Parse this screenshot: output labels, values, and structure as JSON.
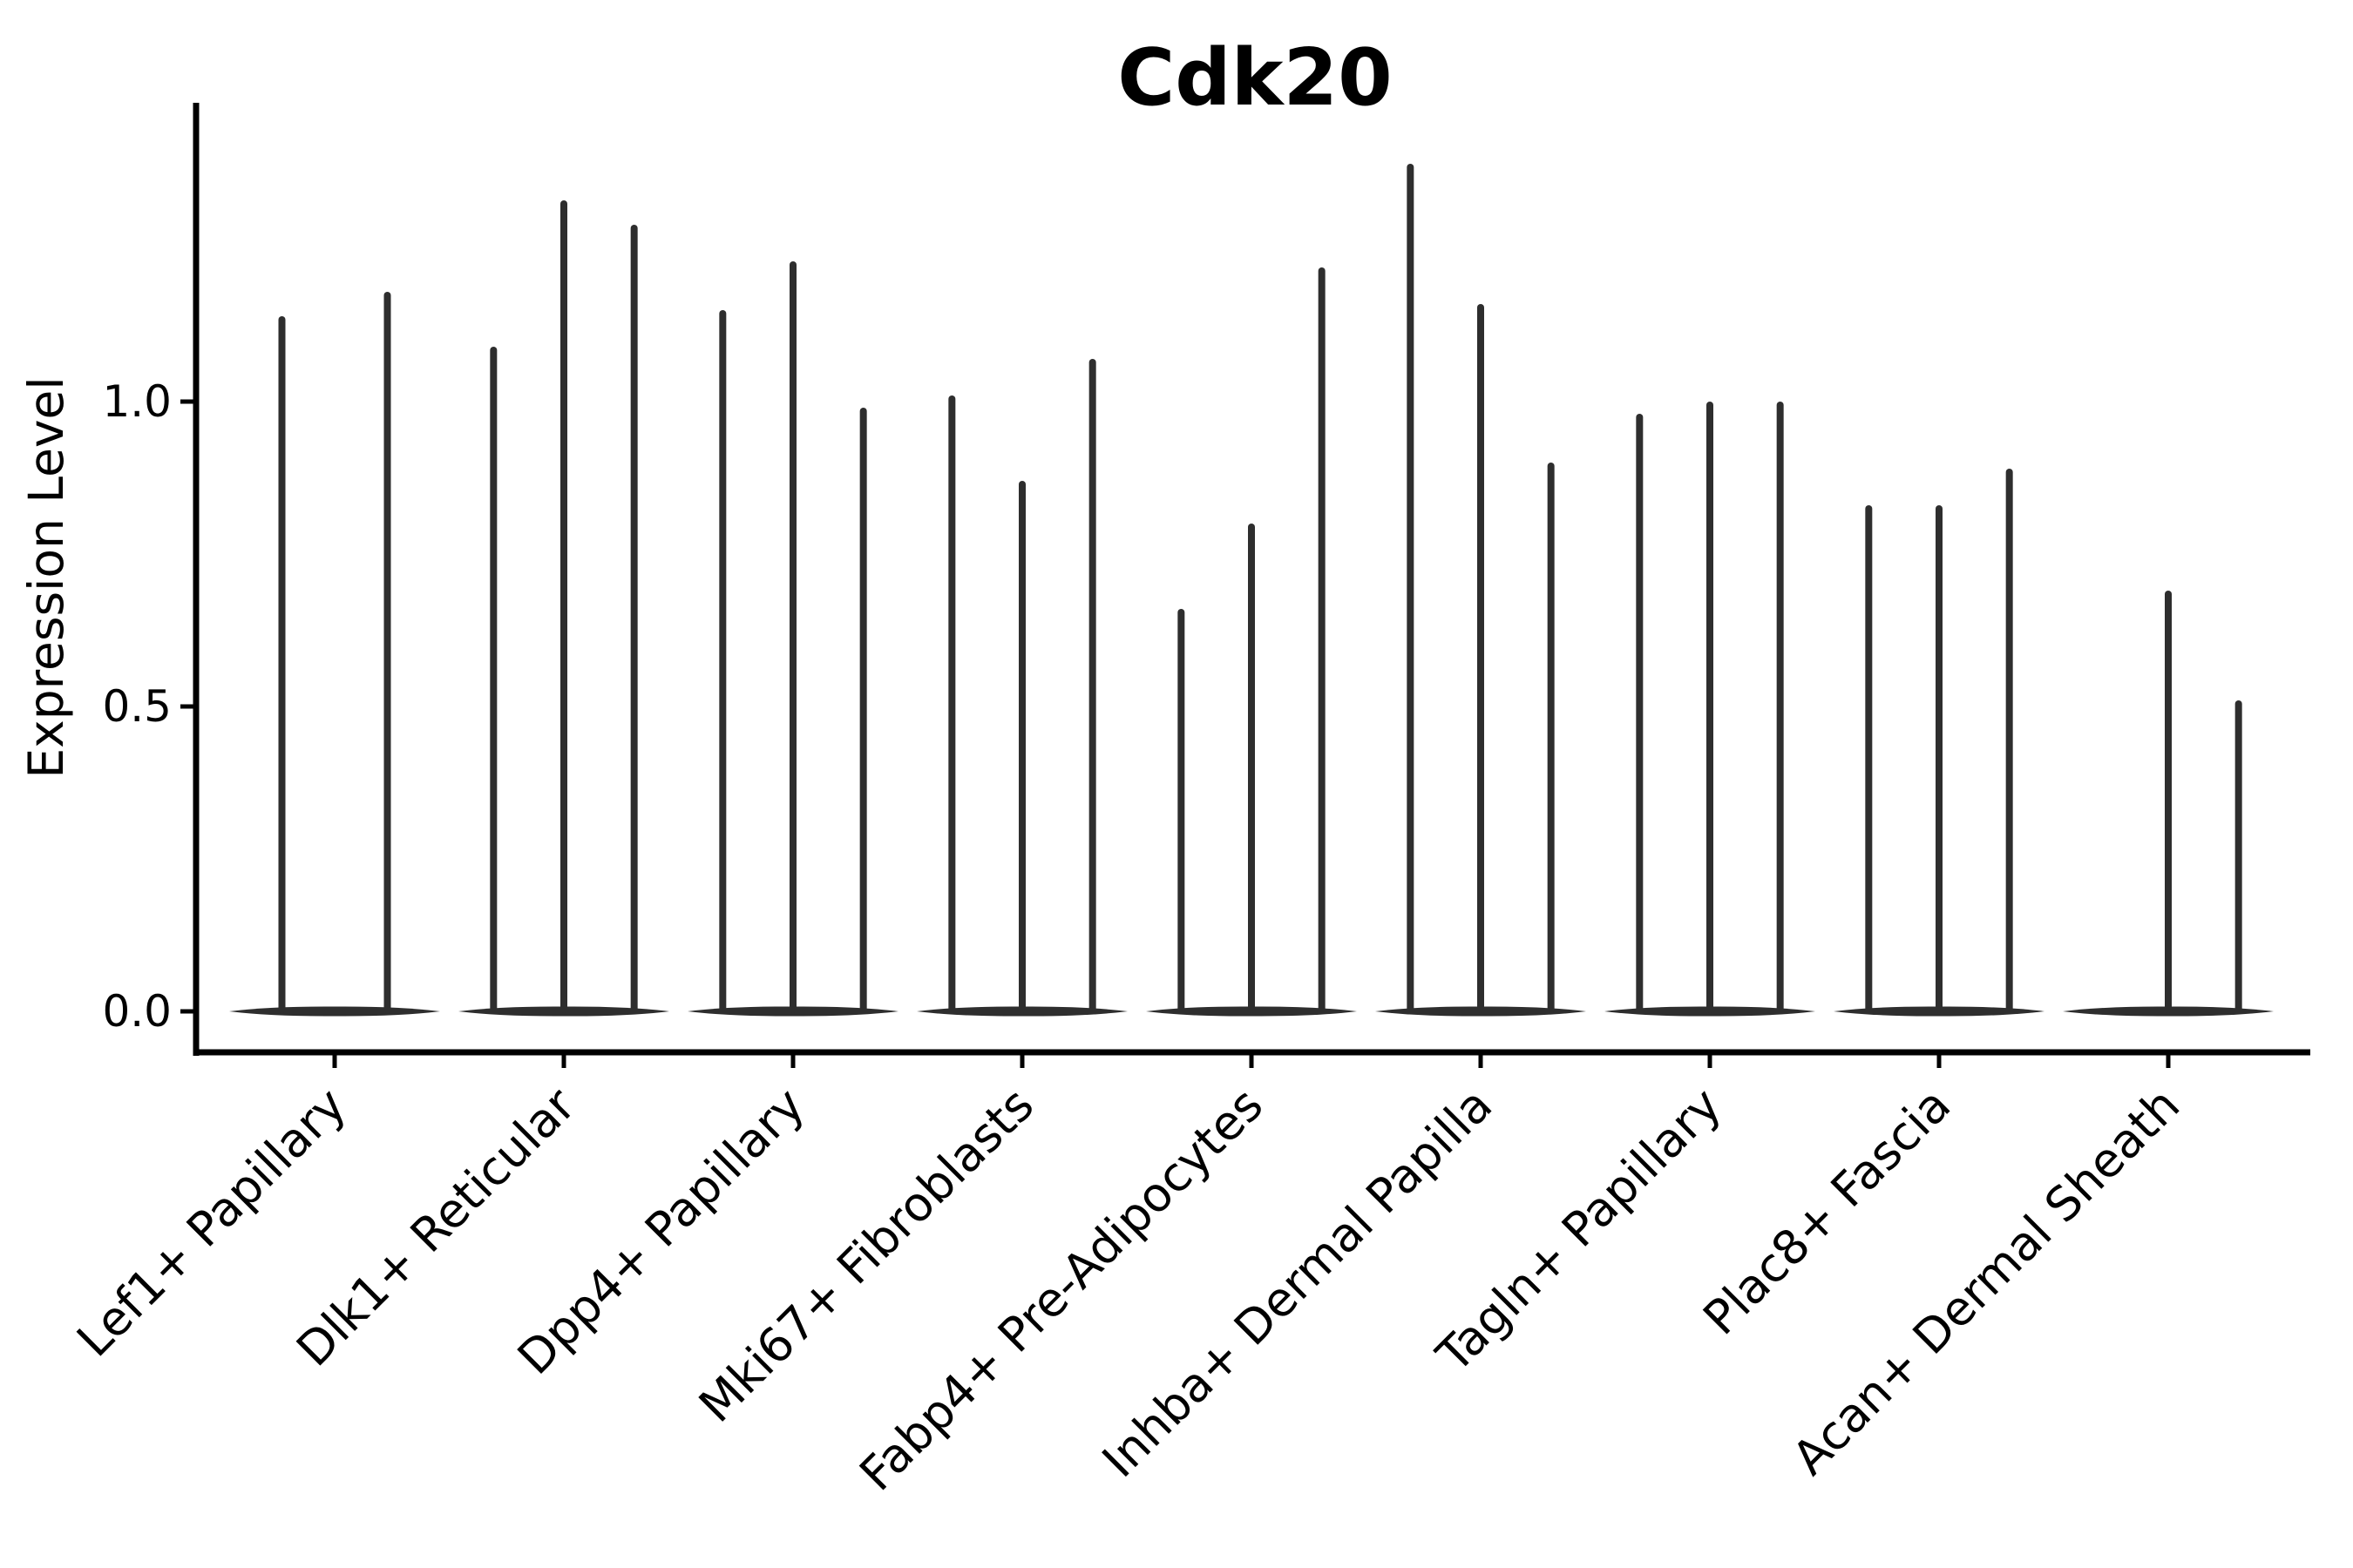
{
  "title": "Cdk20",
  "y_axis": {
    "label": "Expression Level",
    "tick_labels": [
      "0.0",
      "0.5",
      "1.0"
    ],
    "tick_values": [
      0.0,
      0.5,
      1.0
    ]
  },
  "x_axis": {
    "categories": [
      "Lef1+ Papillary",
      "Dlk1+ Reticular",
      "Dpp4+ Papillary",
      "Mki67+ Fibroblasts",
      "Fabp4+ Pre-Adipocytes",
      "Inhba+ Dermal Papilla",
      "Tagln+ Papillary",
      "Plac8+ Fascia",
      "Acan+ Dermal Sheath"
    ]
  },
  "chart_data": {
    "type": "violin",
    "title": "Cdk20",
    "xlabel": "",
    "ylabel": "Expression Level",
    "ylim": [
      0,
      1.49
    ],
    "yticks": [
      0.0,
      0.5,
      1.0
    ],
    "grid": false,
    "legend": "none",
    "categories": [
      "Lef1+ Papillary",
      "Dlk1+ Reticular",
      "Dpp4+ Papillary",
      "Mki67+ Fibroblasts",
      "Fabp4+ Pre-Adipocytes",
      "Inhba+ Dermal Papilla",
      "Tagln+ Papillary",
      "Plac8+ Fascia",
      "Acan+ Dermal Sheath"
    ],
    "series": [
      {
        "category": "Lef1+ Papillary",
        "violin_max_values": [
          1.14,
          1.18
        ]
      },
      {
        "category": "Dlk1+ Reticular",
        "violin_max_values": [
          1.09,
          1.33,
          1.29
        ]
      },
      {
        "category": "Dpp4+ Papillary",
        "violin_max_values": [
          1.15,
          1.23,
          0.99
        ]
      },
      {
        "category": "Mki67+ Fibroblasts",
        "violin_max_values": [
          1.01,
          0.87,
          1.07
        ]
      },
      {
        "category": "Fabp4+ Pre-Adipocytes",
        "violin_max_values": [
          0.66,
          0.8,
          1.22
        ]
      },
      {
        "category": "Inhba+ Dermal Papilla",
        "violin_max_values": [
          1.39,
          1.16,
          0.9
        ]
      },
      {
        "category": "Tagln+ Papillary",
        "violin_max_values": [
          0.98,
          1.0,
          1.0
        ]
      },
      {
        "category": "Plac8+ Fascia",
        "violin_max_values": [
          0.83,
          0.83,
          0.89
        ]
      },
      {
        "category": "Acan+ Dermal Sheath",
        "violin_max_values": [
          0,
          0.69,
          0.51
        ]
      }
    ]
  },
  "colors": {
    "violin": "#2e2e2e",
    "axis": "#000000",
    "text": "#000000",
    "background": "#ffffff"
  }
}
